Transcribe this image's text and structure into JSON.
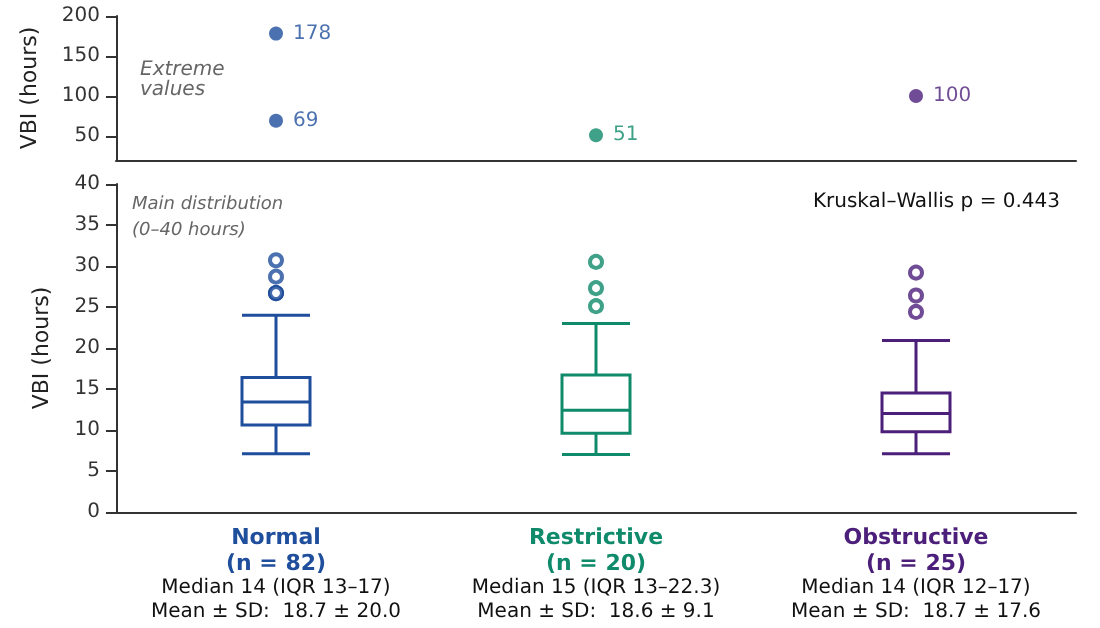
{
  "chart_data": [
    {
      "type": "scatter",
      "ylabel": "VBI (hours)",
      "categories": [
        "Normal",
        "Restrictive",
        "Obstructive"
      ],
      "tick_labels": "y",
      "ylim": [
        20,
        200
      ],
      "yticks": [
        50,
        100,
        150,
        200
      ],
      "data_labels": true,
      "grid": false,
      "marker": "circle",
      "annotations": [
        "Extreme values"
      ],
      "series": [
        {
          "color": "#1f4e9c",
          "x": [
            "Normal",
            "Normal"
          ],
          "values": [
            178,
            69
          ]
        },
        {
          "color": "#0f8a6a",
          "x": [
            "Restrictive"
          ],
          "values": [
            51
          ]
        },
        {
          "color": "#4b1f7a",
          "x": [
            "Obstructive"
          ],
          "values": [
            100
          ]
        }
      ]
    },
    {
      "type": "box",
      "ylabel": "VBI (hours)",
      "categories": [
        "Normal\n(n = 82)\nMedian 14 (IQR 13–17)\nMean ± SD:  18.7 ± 20.0",
        "Restrictive\n(n = 20)\nMedian 15 (IQR 13–22.3)\nMean ± SD:  18.6 ± 9.1",
        "Obstructive\n(n = 25)\nMedian 14 (IQR 12–17)\nMean ± SD:  18.7 ± 17.6"
      ],
      "colors": [
        "#1f4e9c",
        "#0f8a6a",
        "#4b1f7a"
      ],
      "ylim": [
        0,
        40
      ],
      "yticks": [
        0,
        5,
        10,
        15,
        20,
        25,
        30,
        35,
        40
      ],
      "grid": false,
      "annotations": [
        "Main distribution\n(0–40 hours)",
        "Kruskal–Wallis p = 0.443"
      ],
      "boxes": [
        {
          "low": 7.1,
          "q1": 10.6,
          "median": 13.4,
          "q3": 16.4,
          "high": 24,
          "outliers": [
            30.7,
            28.7,
            26.7,
            26.7,
            26.7
          ]
        },
        {
          "low": 7,
          "q1": 9.6,
          "median": 12.4,
          "q3": 16.7,
          "high": 23,
          "outliers": [
            30.5,
            27.3,
            25.1
          ]
        },
        {
          "low": 7.1,
          "q1": 9.8,
          "median": 12,
          "q3": 14.5,
          "high": 20.9,
          "outliers": [
            29.2,
            26.4,
            24.4
          ]
        }
      ]
    }
  ]
}
